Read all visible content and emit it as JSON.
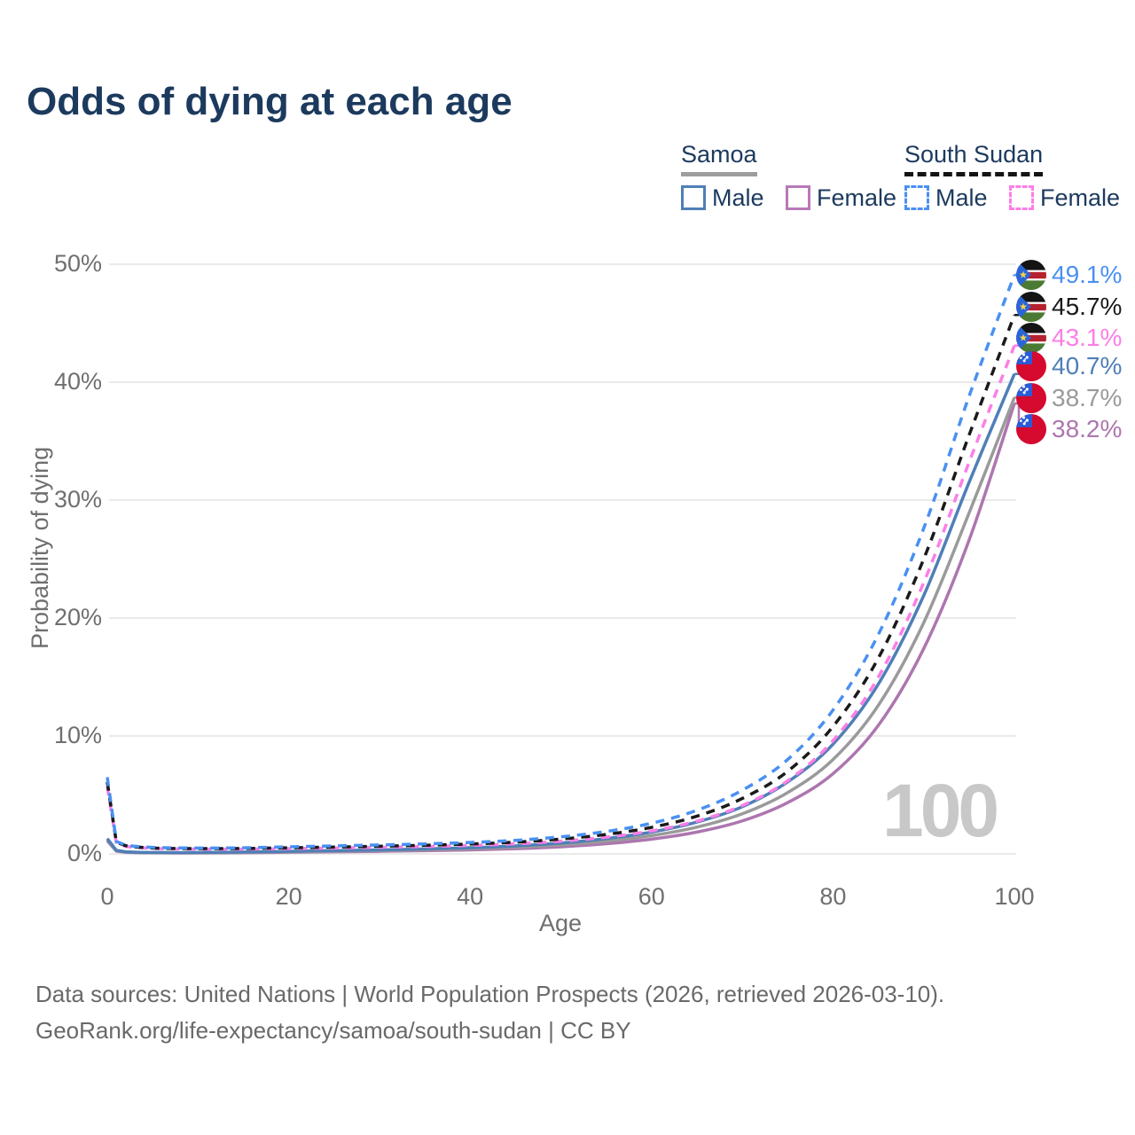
{
  "title": "Odds of dying at each age",
  "legend": {
    "samoa": {
      "title": "Samoa",
      "male": "Male",
      "female": "Female"
    },
    "south_sudan": {
      "title": "South Sudan",
      "male": "Male",
      "female": "Female"
    }
  },
  "axes": {
    "y_title": "Probability of dying",
    "x_title": "Age",
    "y_ticks": [
      "0%",
      "10%",
      "20%",
      "30%",
      "40%",
      "50%"
    ],
    "x_ticks": [
      "0",
      "20",
      "40",
      "60",
      "80",
      "100"
    ]
  },
  "watermark": "100",
  "end_labels": [
    {
      "value": "49.1%",
      "flag": "south-sudan",
      "color": "#4a90f2"
    },
    {
      "value": "45.7%",
      "flag": "south-sudan",
      "color": "#1a1a1a"
    },
    {
      "value": "43.1%",
      "flag": "south-sudan",
      "color": "#fc7ee6"
    },
    {
      "value": "40.7%",
      "flag": "samoa",
      "color": "#4f7fb7"
    },
    {
      "value": "38.7%",
      "flag": "samoa",
      "color": "#9a9a9a"
    },
    {
      "value": "38.2%",
      "flag": "samoa",
      "color": "#ad76af"
    }
  ],
  "footer": {
    "line1": "Data sources: United Nations | World Population Prospects (2026, retrieved 2026-03-10).",
    "line2": "GeoRank.org/life-expectancy/samoa/south-sudan | CC BY"
  },
  "chart_data": {
    "type": "line",
    "title": "Odds of dying at each age",
    "xlabel": "Age",
    "ylabel": "Probability of dying",
    "xlim": [
      0,
      100
    ],
    "ylim_pct": [
      0,
      50
    ],
    "grid": "horizontal-only",
    "legend_position": "top-right",
    "x": [
      0,
      1,
      2,
      5,
      10,
      15,
      20,
      25,
      30,
      35,
      40,
      45,
      50,
      55,
      60,
      65,
      70,
      75,
      80,
      85,
      90,
      95,
      100
    ],
    "series": [
      {
        "name": "South Sudan Male",
        "color": "#4a90f2",
        "style": "dashed",
        "end_value_pct": 49.1,
        "values_pct": [
          6.5,
          1.05,
          0.75,
          0.55,
          0.5,
          0.52,
          0.6,
          0.68,
          0.76,
          0.85,
          0.97,
          1.15,
          1.45,
          1.9,
          2.6,
          3.7,
          5.4,
          8.0,
          12.2,
          18.6,
          27.6,
          38.8,
          49.1
        ]
      },
      {
        "name": "South Sudan Both sexes",
        "color": "#1a1a1a",
        "style": "dashed",
        "end_value_pct": 45.7,
        "values_pct": [
          6.1,
          1.0,
          0.7,
          0.5,
          0.45,
          0.46,
          0.52,
          0.58,
          0.65,
          0.73,
          0.84,
          1.0,
          1.26,
          1.65,
          2.25,
          3.2,
          4.7,
          7.0,
          10.8,
          16.6,
          25.0,
          35.5,
          45.7
        ]
      },
      {
        "name": "South Sudan Female",
        "color": "#fc7ee6",
        "style": "dashed",
        "end_value_pct": 43.1,
        "values_pct": [
          5.7,
          0.95,
          0.65,
          0.47,
          0.41,
          0.41,
          0.45,
          0.5,
          0.56,
          0.63,
          0.72,
          0.86,
          1.08,
          1.42,
          1.95,
          2.78,
          4.1,
          6.2,
          9.6,
          15.0,
          23.0,
          33.2,
          43.1
        ]
      },
      {
        "name": "Samoa Male",
        "color": "#4f7fb7",
        "style": "solid",
        "end_value_pct": 40.7,
        "values_pct": [
          1.3,
          0.3,
          0.18,
          0.12,
          0.12,
          0.16,
          0.22,
          0.28,
          0.34,
          0.42,
          0.53,
          0.68,
          0.92,
          1.3,
          1.85,
          2.7,
          4.0,
          6.1,
          9.3,
          14.4,
          21.9,
          31.5,
          40.7
        ]
      },
      {
        "name": "Samoa Both sexes",
        "color": "#9a9a9a",
        "style": "solid",
        "end_value_pct": 38.7,
        "values_pct": [
          1.2,
          0.27,
          0.16,
          0.1,
          0.1,
          0.13,
          0.18,
          0.23,
          0.28,
          0.35,
          0.44,
          0.57,
          0.77,
          1.08,
          1.55,
          2.27,
          3.4,
          5.2,
          8.0,
          12.6,
          19.6,
          28.9,
          38.7
        ]
      },
      {
        "name": "Samoa Female",
        "color": "#ad76af",
        "style": "solid",
        "end_value_pct": 38.2,
        "values_pct": [
          1.1,
          0.24,
          0.14,
          0.09,
          0.08,
          0.1,
          0.14,
          0.18,
          0.22,
          0.27,
          0.34,
          0.44,
          0.6,
          0.86,
          1.25,
          1.85,
          2.8,
          4.35,
          6.8,
          10.9,
          17.4,
          26.6,
          38.2
        ]
      }
    ]
  }
}
